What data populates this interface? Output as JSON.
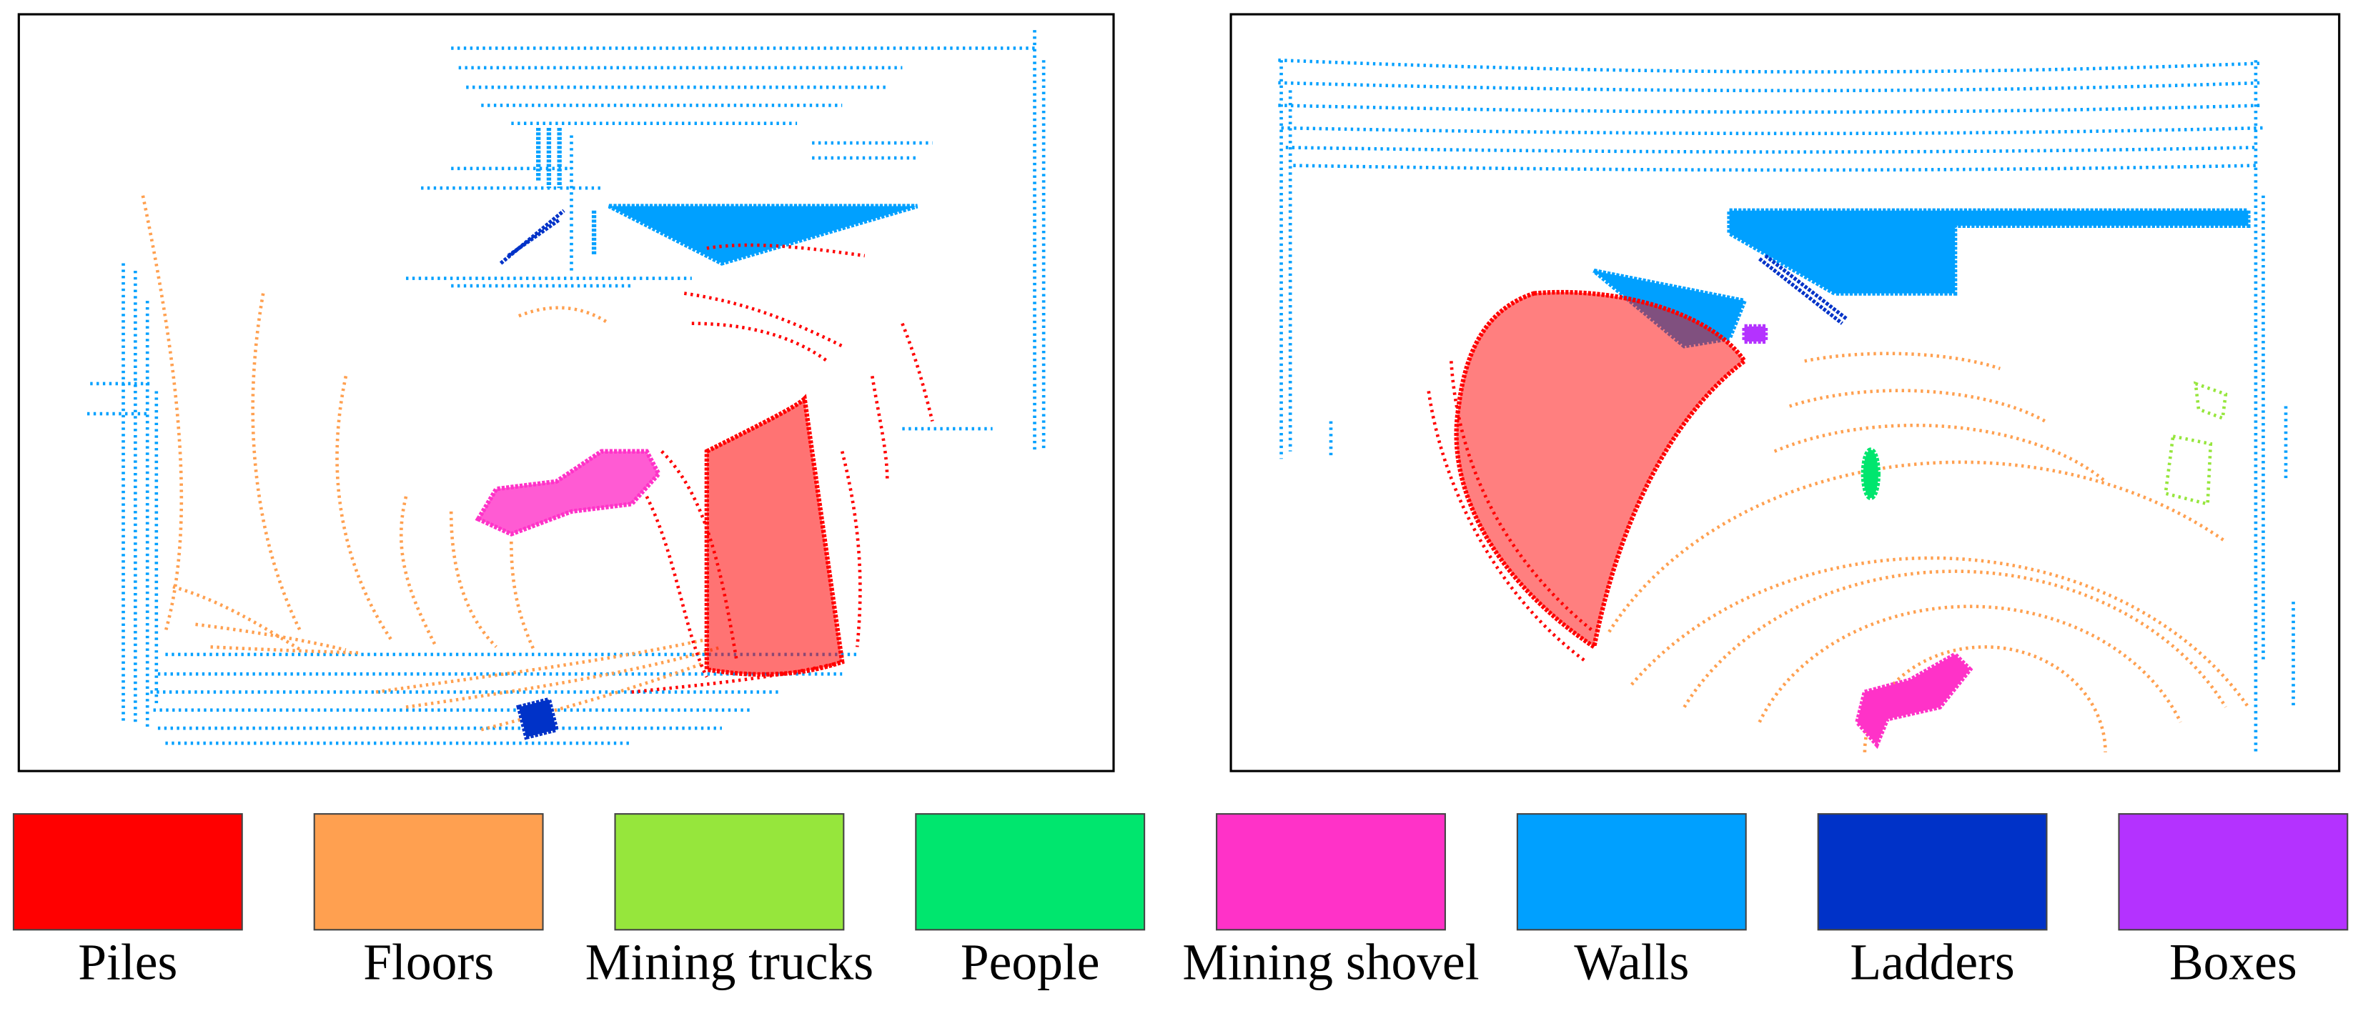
{
  "legend": [
    {
      "label": "Piles",
      "color": "#ff0000"
    },
    {
      "label": "Floors",
      "color": "#ffa050"
    },
    {
      "label": "Mining trucks",
      "color": "#96e63c"
    },
    {
      "label": "People",
      "color": "#00e66e"
    },
    {
      "label": "Mining shovel",
      "color": "#ff32c8"
    },
    {
      "label": "Walls",
      "color": "#00a0ff"
    },
    {
      "label": "Ladders",
      "color": "#0032c8"
    },
    {
      "label": "Boxes",
      "color": "#b432ff"
    }
  ]
}
